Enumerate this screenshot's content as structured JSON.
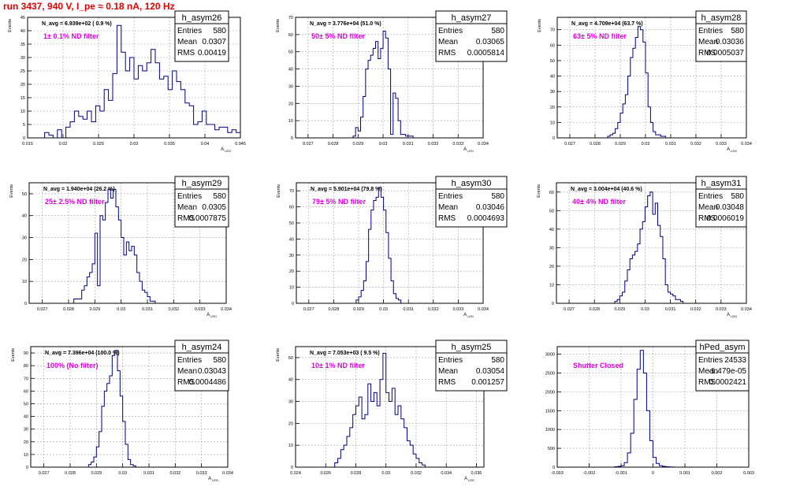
{
  "page_title": "run 3437,   940 V, I_pe ≈ 0.18 nA, 120 Hz",
  "stat_labels": {
    "entries": "Entries",
    "mean": "Mean",
    "rms": "RMS"
  },
  "colors": {
    "hist": "#000080",
    "title": "#e00000",
    "annotation": "#e000e0",
    "grid": "#a0a0a0"
  },
  "chart_data": [
    {
      "type": "bar",
      "name": "h_asym26",
      "stats": {
        "entries": "580",
        "mean": "0.0307",
        "rms": "0.00419"
      },
      "avg_label": "N_avg = 6.939e+02 ( 0.9 %)",
      "filter_label": "1± 0.1% ND filter",
      "xlabel": "A_LED",
      "ylabel": "Events",
      "xlim": [
        0.015,
        0.045
      ],
      "ylim": [
        0,
        45
      ],
      "xticks": [
        0.015,
        0.02,
        0.025,
        0.03,
        0.035,
        0.04,
        0.045
      ],
      "xtick_labels": [
        "0.015",
        "0.02",
        "0.025",
        "0.03",
        "0.035",
        "0.04",
        "0.045"
      ],
      "yticks": [
        0,
        5,
        10,
        15,
        20,
        25,
        30,
        35,
        40,
        45
      ],
      "bins": {
        "start": 0.0174,
        "width": 0.0006,
        "values": [
          2,
          1,
          0,
          3,
          0,
          4,
          6,
          10,
          8,
          7,
          10,
          6,
          12,
          10,
          18,
          14,
          24,
          42,
          32,
          25,
          30,
          22,
          27,
          25,
          28,
          33,
          28,
          22,
          23,
          18,
          25,
          21,
          18,
          13,
          12,
          5,
          6,
          10,
          5,
          5,
          3,
          4,
          4,
          2,
          3,
          2
        ]
      }
    },
    {
      "type": "bar",
      "name": "h_asym27",
      "stats": {
        "entries": "580",
        "mean": "0.03065",
        "rms": "0.0005814"
      },
      "avg_label": "N_avg = 3.776e+04 (51.0 %)",
      "filter_label": "50± 5% ND filter",
      "xlabel": "A_LED",
      "ylabel": "Events",
      "xlim": [
        0.0265,
        0.034
      ],
      "ylim": [
        0,
        70
      ],
      "xticks": [
        0.027,
        0.028,
        0.029,
        0.03,
        0.031,
        0.032,
        0.033,
        0.034
      ],
      "xtick_labels": [
        "0.027",
        "0.028",
        "0.029",
        "0.03",
        "0.031",
        "0.032",
        "0.033",
        "0.034"
      ],
      "yticks": [
        0,
        10,
        20,
        30,
        40,
        50,
        60,
        70
      ],
      "bins": {
        "start": 0.0288,
        "width": 0.0001,
        "values": [
          1,
          6,
          4,
          12,
          24,
          40,
          45,
          48,
          52,
          56,
          46,
          52,
          62,
          58,
          40,
          2,
          26,
          23,
          10,
          2,
          2,
          1,
          1,
          1
        ]
      }
    },
    {
      "type": "bar",
      "name": "h_asym28",
      "stats": {
        "entries": "580",
        "mean": "0.03036",
        "rms": "0.0005037"
      },
      "avg_label": "N_avg = 4.709e+04 (63.7 %)",
      "filter_label": "63± 5% ND filter",
      "xlabel": "A_LED",
      "ylabel": "Events",
      "xlim": [
        0.0265,
        0.034
      ],
      "ylim": [
        0,
        78
      ],
      "xticks": [
        0.027,
        0.028,
        0.029,
        0.03,
        0.031,
        0.032,
        0.033,
        0.034
      ],
      "xtick_labels": [
        "0.027",
        "0.028",
        "0.029",
        "0.03",
        "0.031",
        "0.032",
        "0.033",
        "0.034"
      ],
      "yticks": [
        0,
        10,
        20,
        30,
        40,
        50,
        60,
        70
      ],
      "bins": {
        "start": 0.0285,
        "width": 0.0001,
        "values": [
          1,
          2,
          3,
          6,
          10,
          16,
          22,
          28,
          40,
          52,
          58,
          65,
          72,
          70,
          62,
          42,
          20,
          10,
          4,
          2,
          2,
          1,
          1
        ]
      }
    },
    {
      "type": "bar",
      "name": "h_asym29",
      "stats": {
        "entries": "580",
        "mean": "0.0305",
        "rms": "0.0007875"
      },
      "avg_label": "N_avg = 1.940e+04 (26.2 %)",
      "filter_label": "25± 2.5% ND filter",
      "xlabel": "A_LED",
      "ylabel": "Events",
      "xlim": [
        0.0265,
        0.034
      ],
      "ylim": [
        0,
        55
      ],
      "xticks": [
        0.027,
        0.028,
        0.029,
        0.03,
        0.031,
        0.032,
        0.033,
        0.034
      ],
      "xtick_labels": [
        "0.027",
        "0.028",
        "0.029",
        "0.03",
        "0.031",
        "0.032",
        "0.033",
        "0.034"
      ],
      "yticks": [
        0,
        10,
        20,
        30,
        40,
        50
      ],
      "bins": {
        "start": 0.0282,
        "width": 0.0001,
        "values": [
          2,
          2,
          2,
          6,
          8,
          12,
          14,
          18,
          32,
          8,
          40,
          38,
          46,
          52,
          48,
          52,
          44,
          38,
          30,
          22,
          28,
          24,
          26,
          22,
          14,
          10,
          6,
          5,
          3,
          1,
          1
        ]
      }
    },
    {
      "type": "bar",
      "name": "h_asym30",
      "stats": {
        "entries": "580",
        "mean": "0.03046",
        "rms": "0.0004693"
      },
      "avg_label": "N_avg = 5.901e+04 (79.8 %)",
      "filter_label": "79± 5% ND filter",
      "xlabel": "A_LED",
      "ylabel": "Events",
      "xlim": [
        0.0265,
        0.034
      ],
      "ylim": [
        0,
        75
      ],
      "xticks": [
        0.027,
        0.028,
        0.029,
        0.03,
        0.031,
        0.032,
        0.033,
        0.034
      ],
      "xtick_labels": [
        "0.027",
        "0.028",
        "0.029",
        "0.03",
        "0.031",
        "0.032",
        "0.033",
        "0.034"
      ],
      "yticks": [
        0,
        10,
        20,
        30,
        40,
        50,
        60,
        70
      ],
      "bins": {
        "start": 0.0289,
        "width": 0.0001,
        "values": [
          2,
          4,
          8,
          14,
          26,
          46,
          58,
          64,
          66,
          72,
          66,
          58,
          44,
          28,
          14,
          6,
          3,
          2
        ]
      }
    },
    {
      "type": "bar",
      "name": "h_asym31",
      "stats": {
        "entries": "580",
        "mean": "0.03048",
        "rms": "0.0006019"
      },
      "avg_label": "N_avg = 3.004e+04 (40.6 %)",
      "filter_label": "40± 4% ND filter",
      "xlabel": "A_LED",
      "ylabel": "Events",
      "xlim": [
        0.0265,
        0.034
      ],
      "ylim": [
        0,
        65
      ],
      "xticks": [
        0.027,
        0.028,
        0.029,
        0.03,
        0.031,
        0.032,
        0.033,
        0.034
      ],
      "xtick_labels": [
        "0.027",
        "0.028",
        "0.029",
        "0.03",
        "0.031",
        "0.032",
        "0.033",
        "0.034"
      ],
      "yticks": [
        0,
        10,
        20,
        30,
        40,
        50,
        60
      ],
      "bins": {
        "start": 0.0288,
        "width": 0.0001,
        "values": [
          1,
          2,
          4,
          6,
          12,
          18,
          24,
          26,
          28,
          32,
          40,
          44,
          52,
          58,
          60,
          48,
          54,
          42,
          36,
          24,
          10,
          6,
          5,
          4,
          2,
          2,
          1
        ]
      }
    },
    {
      "type": "bar",
      "name": "h_asym24",
      "stats": {
        "entries": "580",
        "mean": "0.03043",
        "rms": "0.0004486"
      },
      "avg_label": "N_avg = 7.396e+04 (100.0 %)",
      "filter_label": "100% (No filter)",
      "xlabel": "A_LED",
      "ylabel": "Events",
      "xlim": [
        0.0265,
        0.034
      ],
      "ylim": [
        0,
        95
      ],
      "xticks": [
        0.027,
        0.028,
        0.029,
        0.03,
        0.031,
        0.032,
        0.033,
        0.034
      ],
      "xtick_labels": [
        "0.027",
        "0.028",
        "0.029",
        "0.03",
        "0.031",
        "0.032",
        "0.033",
        "0.034"
      ],
      "yticks": [
        0,
        10,
        20,
        30,
        40,
        50,
        60,
        70,
        80,
        90
      ],
      "bins": {
        "start": 0.0287,
        "width": 0.0001,
        "values": [
          2,
          4,
          8,
          16,
          28,
          48,
          60,
          66,
          72,
          88,
          92,
          76,
          56,
          36,
          18,
          6,
          2,
          1
        ]
      }
    },
    {
      "type": "bar",
      "name": "h_asym25",
      "stats": {
        "entries": "580",
        "mean": "0.03054",
        "rms": "0.001257"
      },
      "avg_label": "N_avg = 7.053e+03 ( 9.5 %)",
      "filter_label": "10± 1% ND filter",
      "xlabel": "A_LED",
      "ylabel": "Events",
      "xlim": [
        0.024,
        0.0365
      ],
      "ylim": [
        0,
        55
      ],
      "xticks": [
        0.024,
        0.026,
        0.028,
        0.03,
        0.032,
        0.034,
        0.036
      ],
      "xtick_labels": [
        "0.024",
        "0.026",
        "0.028",
        "0.03",
        "0.032",
        "0.034",
        "0.036"
      ],
      "yticks": [
        0,
        10,
        20,
        30,
        40,
        50
      ],
      "bins": {
        "start": 0.0266,
        "width": 0.0002,
        "values": [
          2,
          4,
          8,
          10,
          14,
          18,
          24,
          28,
          32,
          22,
          24,
          38,
          30,
          34,
          28,
          40,
          52,
          34,
          30,
          36,
          24,
          28,
          22,
          18,
          12,
          10,
          6,
          4,
          2,
          1
        ]
      }
    },
    {
      "type": "bar",
      "name": "hPed_asym",
      "stats": {
        "entries": "24533",
        "mean": "-1.479e-05",
        "rms": "0.0002421"
      },
      "avg_label": "",
      "filter_label": "Shutter Closed",
      "xlabel": "",
      "ylabel": "",
      "xlim": [
        -0.003,
        0.003
      ],
      "ylim": [
        0,
        3200
      ],
      "xticks": [
        -0.003,
        -0.002,
        -0.001,
        0,
        0.001,
        0.002,
        0.003
      ],
      "xtick_labels": [
        "-0.003",
        "-0.002",
        "-0.001",
        "0",
        "0.001",
        "0.002",
        "0.003"
      ],
      "yticks": [
        0,
        500,
        1000,
        1500,
        2000,
        2500,
        3000
      ],
      "bins": {
        "start": -0.0012,
        "width": 0.0001,
        "values": [
          10,
          20,
          40,
          120,
          380,
          900,
          1800,
          2600,
          3100,
          2500,
          1500,
          700,
          260,
          100,
          40,
          20,
          10,
          5,
          2
        ]
      }
    }
  ]
}
